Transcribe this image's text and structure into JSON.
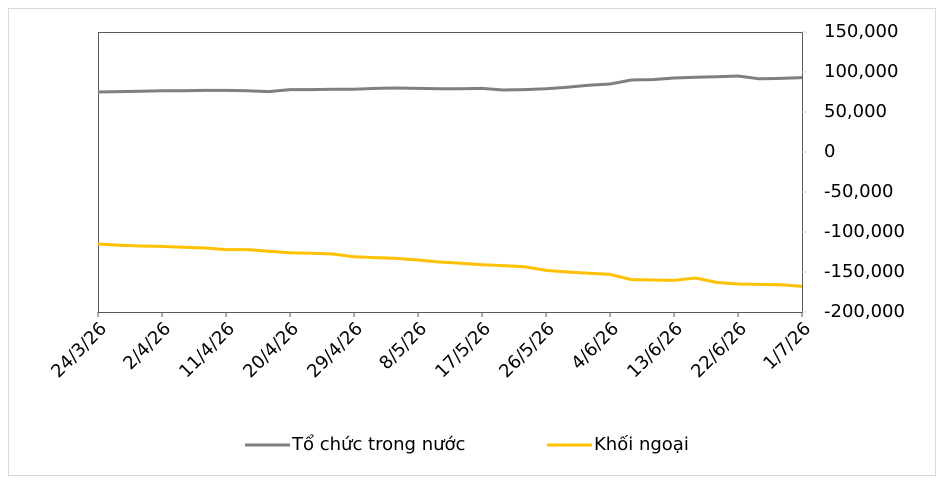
{
  "chart_data": {
    "type": "line",
    "x": [
      "24/3/26",
      "27/3/26",
      "30/3/26",
      "2/4/26",
      "5/4/26",
      "8/4/26",
      "11/4/26",
      "14/4/26",
      "17/4/26",
      "20/4/26",
      "23/4/26",
      "26/4/26",
      "29/4/26",
      "2/5/26",
      "5/5/26",
      "8/5/26",
      "11/5/26",
      "14/5/26",
      "17/5/26",
      "20/5/26",
      "23/5/26",
      "26/5/26",
      "29/5/26",
      "1/6/26",
      "4/6/26",
      "7/6/26",
      "10/6/26",
      "13/6/26",
      "16/6/26",
      "19/6/26",
      "22/6/26",
      "25/6/26",
      "28/6/26",
      "1/7/26"
    ],
    "series": [
      {
        "name": "Tổ chức trong nước",
        "color": "#7f7f7f",
        "values": [
          75000,
          75500,
          76000,
          76500,
          76500,
          77000,
          77000,
          76500,
          75500,
          78000,
          78000,
          78500,
          78500,
          79500,
          80000,
          79500,
          79000,
          79000,
          79500,
          77500,
          78000,
          79000,
          81000,
          83500,
          85000,
          90000,
          90500,
          92500,
          93500,
          94000,
          95000,
          91500,
          92000,
          93000
        ]
      },
      {
        "name": "Khối ngoại",
        "color": "#ffc000",
        "values": [
          -115000,
          -116500,
          -117500,
          -118000,
          -119000,
          -120000,
          -122000,
          -122000,
          -124000,
          -126000,
          -126500,
          -127500,
          -131000,
          -132000,
          -133000,
          -135000,
          -137500,
          -139000,
          -141000,
          -142000,
          -143500,
          -148000,
          -150000,
          -151500,
          -153000,
          -159500,
          -160000,
          -160500,
          -157500,
          -163000,
          -165000,
          -165500,
          -166000,
          -168000
        ]
      }
    ],
    "xticks": [
      "24/3/26",
      "2/4/26",
      "11/4/26",
      "20/4/26",
      "29/4/26",
      "8/5/26",
      "17/5/26",
      "26/5/26",
      "4/6/26",
      "13/6/26",
      "22/6/26",
      "1/7/26"
    ],
    "ylim": [
      -200000,
      150000
    ],
    "yticks": [
      {
        "value": -200000,
        "label": "-200,000"
      },
      {
        "value": -150000,
        "label": "-150,000"
      },
      {
        "value": -100000,
        "label": "-100,000"
      },
      {
        "value": -50000,
        "label": "-50,000"
      },
      0,
      {
        "value": 50000,
        "label": "50,000"
      },
      {
        "value": 100000,
        "label": "100,000"
      },
      {
        "value": 150000,
        "label": "150,000"
      }
    ],
    "y_axis_side": "right",
    "legend": "bottom"
  }
}
